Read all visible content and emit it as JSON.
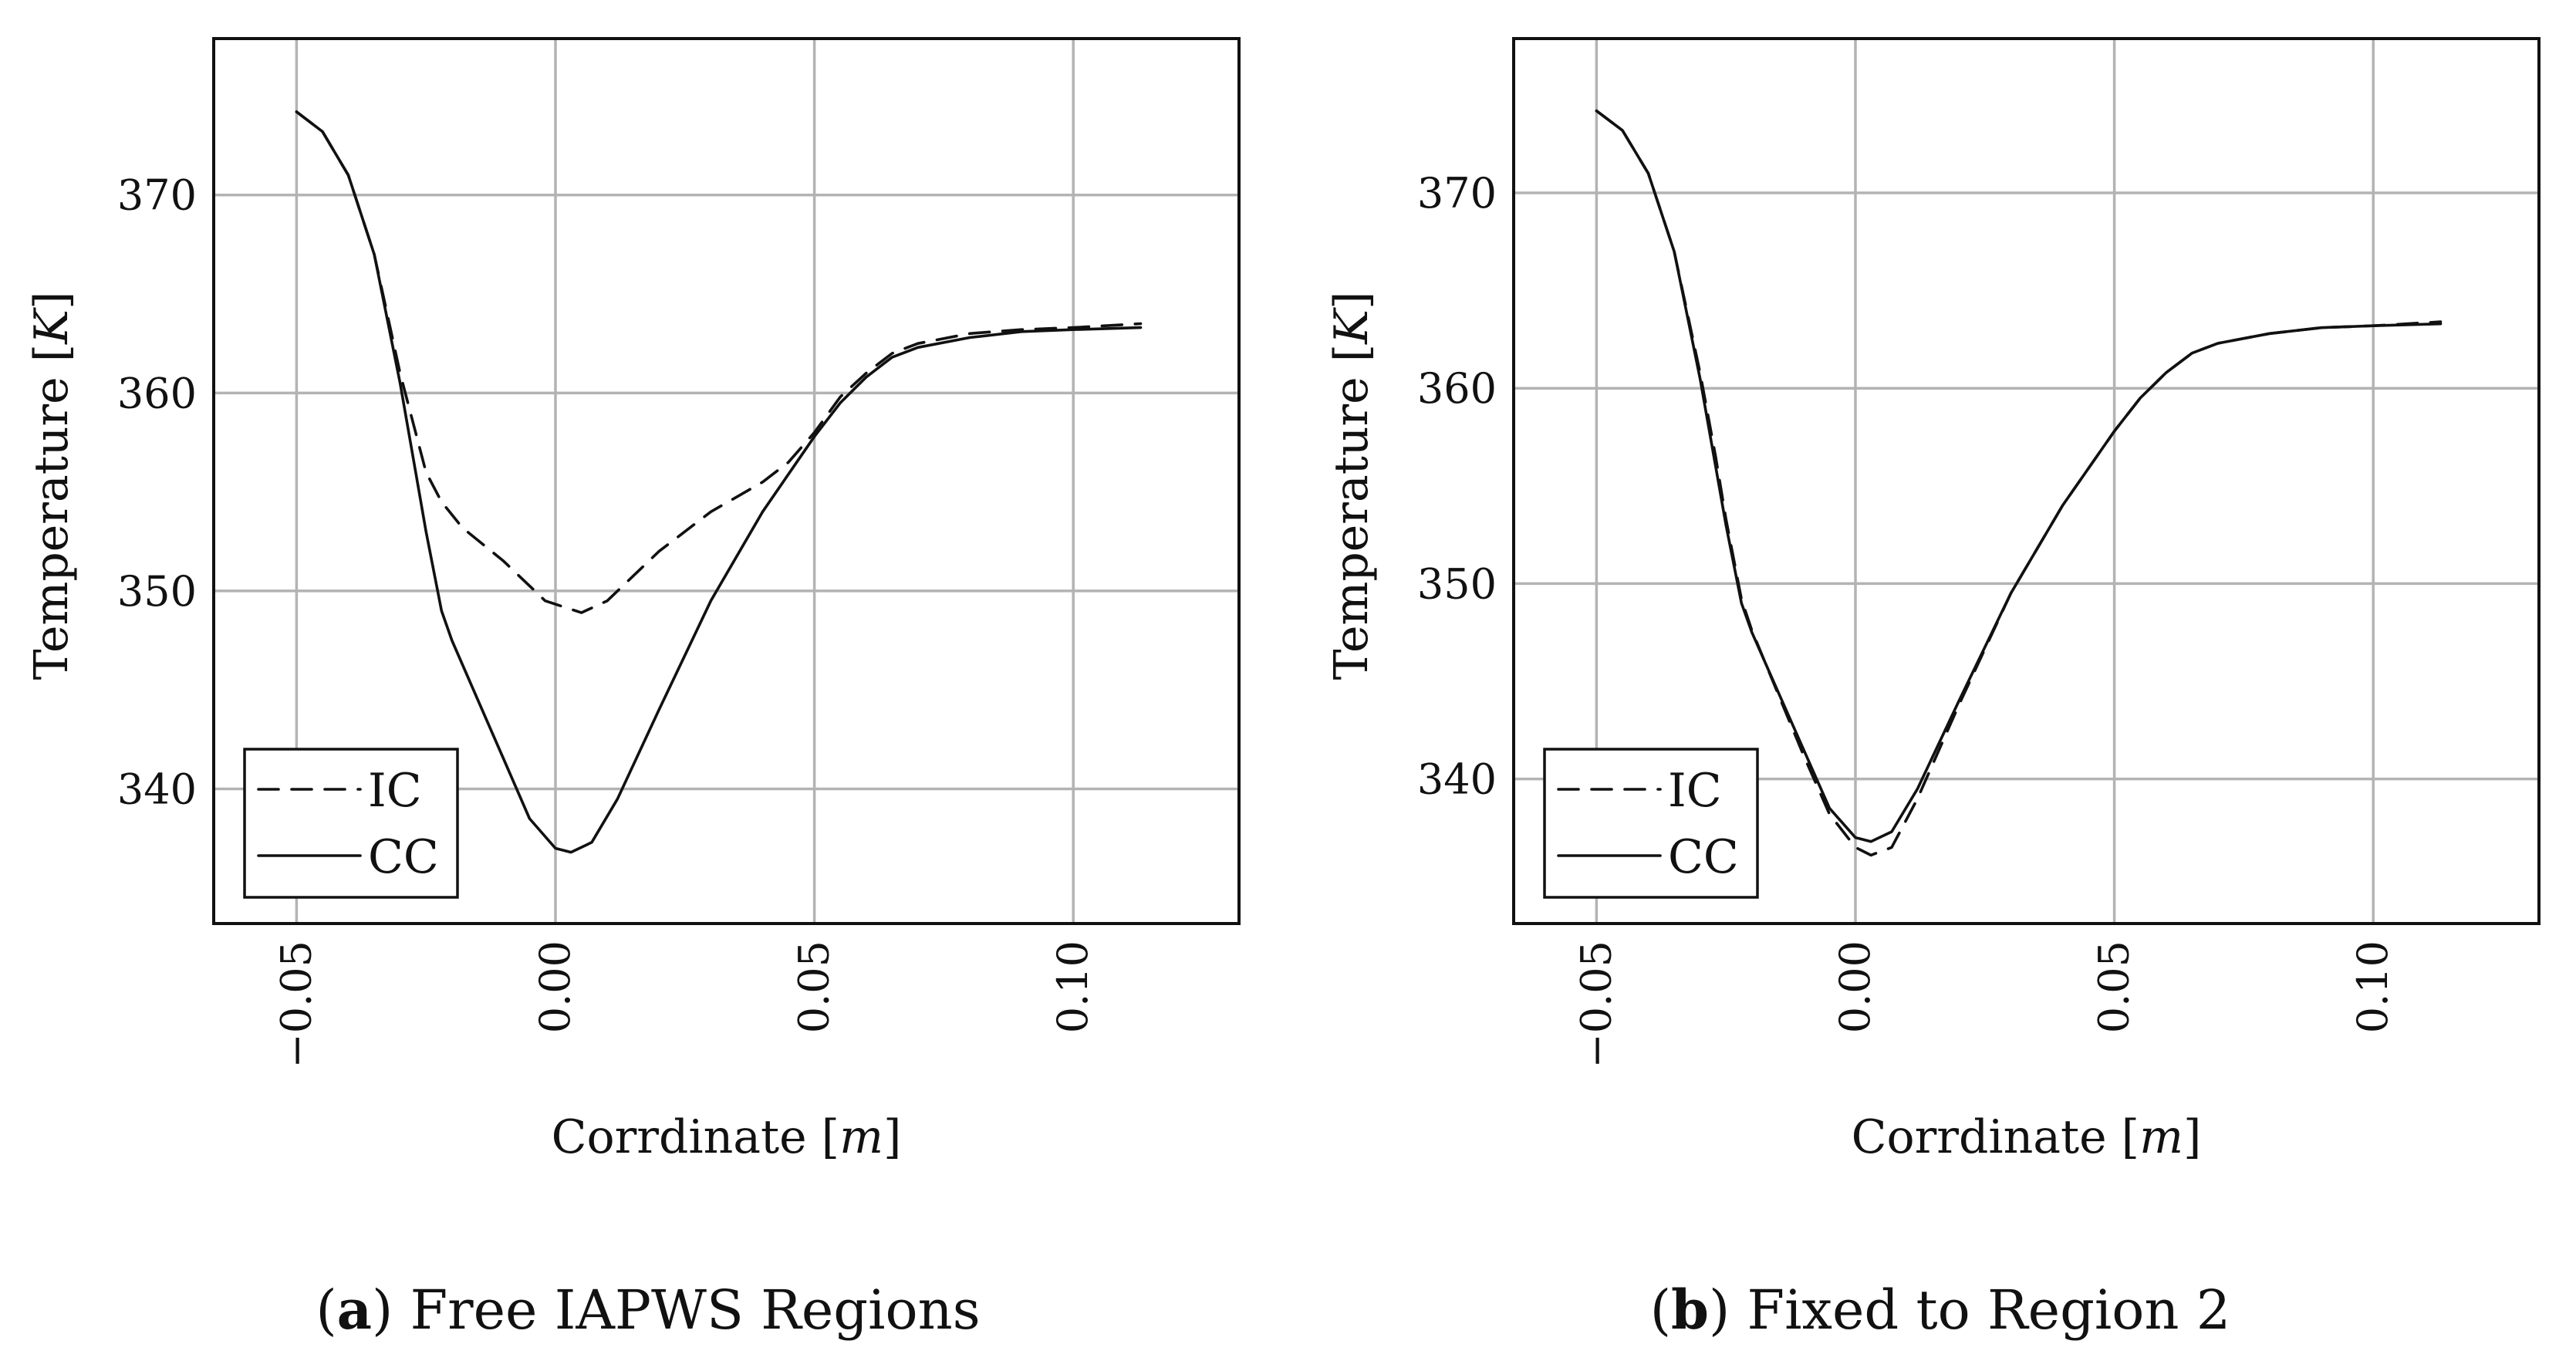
{
  "figure": {
    "panels": [
      {
        "caption_label": "a",
        "caption_text": " Free IAPWS Regions"
      },
      {
        "caption_label": "b",
        "caption_text": " Fixed to Region 2"
      }
    ]
  },
  "colors": {
    "line": "#111111",
    "grid": "#b3b3b3",
    "background": "#ffffff"
  },
  "chart_data": [
    {
      "type": "line",
      "title": "",
      "xlabel": "Corrdinate",
      "xunit": "m",
      "ylabel": "Temperature",
      "yunit": "K",
      "xlim": [
        -0.066,
        0.132
      ],
      "ylim": [
        333.2,
        377.9
      ],
      "xticks": [
        -0.05,
        0.0,
        0.05,
        0.1
      ],
      "xtick_labels": [
        "−0.05",
        "0.00",
        "0.05",
        "0.10"
      ],
      "yticks": [
        340,
        350,
        360,
        370
      ],
      "ytick_labels": [
        "340",
        "350",
        "360",
        "370"
      ],
      "grid": true,
      "legend_position": "bottom-left",
      "series": [
        {
          "name": "IC",
          "style": "dashed",
          "x": [
            -0.05,
            -0.045,
            -0.04,
            -0.035,
            -0.03,
            -0.025,
            -0.022,
            -0.018,
            -0.01,
            -0.002,
            0.005,
            0.01,
            0.02,
            0.03,
            0.04,
            0.045,
            0.05,
            0.055,
            0.06,
            0.065,
            0.07,
            0.08,
            0.09,
            0.1,
            0.113
          ],
          "y": [
            374.2,
            373.2,
            371.0,
            367.0,
            361.0,
            356.0,
            354.5,
            353.2,
            351.5,
            349.5,
            348.9,
            349.5,
            352.0,
            354.0,
            355.5,
            356.5,
            358.0,
            359.8,
            361.0,
            362.0,
            362.5,
            363.0,
            363.2,
            363.3,
            363.5
          ]
        },
        {
          "name": "CC",
          "style": "solid",
          "x": [
            -0.05,
            -0.045,
            -0.04,
            -0.035,
            -0.03,
            -0.027,
            -0.025,
            -0.022,
            -0.02,
            -0.015,
            -0.01,
            -0.005,
            0.0,
            0.003,
            0.007,
            0.012,
            0.02,
            0.03,
            0.04,
            0.05,
            0.055,
            0.06,
            0.065,
            0.07,
            0.08,
            0.09,
            0.1,
            0.113
          ],
          "y": [
            374.2,
            373.2,
            371.0,
            367.0,
            360.5,
            356.0,
            353.0,
            349.0,
            347.5,
            344.5,
            341.5,
            338.5,
            337.0,
            336.8,
            337.3,
            339.5,
            344.0,
            349.5,
            354.0,
            357.8,
            359.5,
            360.8,
            361.8,
            362.3,
            362.8,
            363.1,
            363.2,
            363.3
          ]
        }
      ]
    },
    {
      "type": "line",
      "title": "",
      "xlabel": "Corrdinate",
      "xunit": "m",
      "ylabel": "Temperature",
      "yunit": "K",
      "xlim": [
        -0.066,
        0.132
      ],
      "ylim": [
        332.6,
        377.9
      ],
      "xticks": [
        -0.05,
        0.0,
        0.05,
        0.1
      ],
      "xtick_labels": [
        "−0.05",
        "0.00",
        "0.05",
        "0.10"
      ],
      "yticks": [
        340,
        350,
        360,
        370
      ],
      "ytick_labels": [
        "340",
        "350",
        "360",
        "370"
      ],
      "grid": true,
      "legend_position": "bottom-left",
      "series": [
        {
          "name": "IC",
          "style": "dashed",
          "x": [
            -0.05,
            -0.045,
            -0.04,
            -0.035,
            -0.03,
            -0.027,
            -0.025,
            -0.022,
            -0.02,
            -0.015,
            -0.01,
            -0.005,
            0.0,
            0.003,
            0.007,
            0.012,
            0.02,
            0.03,
            0.04,
            0.05,
            0.055,
            0.06,
            0.065,
            0.07,
            0.08,
            0.09,
            0.1,
            0.113
          ],
          "y": [
            374.2,
            373.2,
            371.0,
            367.0,
            360.8,
            356.5,
            353.3,
            349.2,
            347.6,
            344.4,
            341.2,
            338.2,
            336.5,
            336.1,
            336.5,
            339.0,
            343.8,
            349.5,
            354.0,
            357.8,
            359.5,
            360.8,
            361.8,
            362.3,
            362.8,
            363.1,
            363.2,
            363.4
          ]
        },
        {
          "name": "CC",
          "style": "solid",
          "x": [
            -0.05,
            -0.045,
            -0.04,
            -0.035,
            -0.03,
            -0.027,
            -0.025,
            -0.022,
            -0.02,
            -0.015,
            -0.01,
            -0.005,
            0.0,
            0.003,
            0.007,
            0.012,
            0.02,
            0.03,
            0.04,
            0.05,
            0.055,
            0.06,
            0.065,
            0.07,
            0.08,
            0.09,
            0.1,
            0.113
          ],
          "y": [
            374.2,
            373.2,
            371.0,
            367.0,
            360.5,
            356.0,
            353.0,
            349.0,
            347.5,
            344.5,
            341.5,
            338.5,
            337.0,
            336.8,
            337.3,
            339.5,
            344.0,
            349.5,
            354.0,
            357.8,
            359.5,
            360.8,
            361.8,
            362.3,
            362.8,
            363.1,
            363.2,
            363.3
          ]
        }
      ]
    }
  ]
}
